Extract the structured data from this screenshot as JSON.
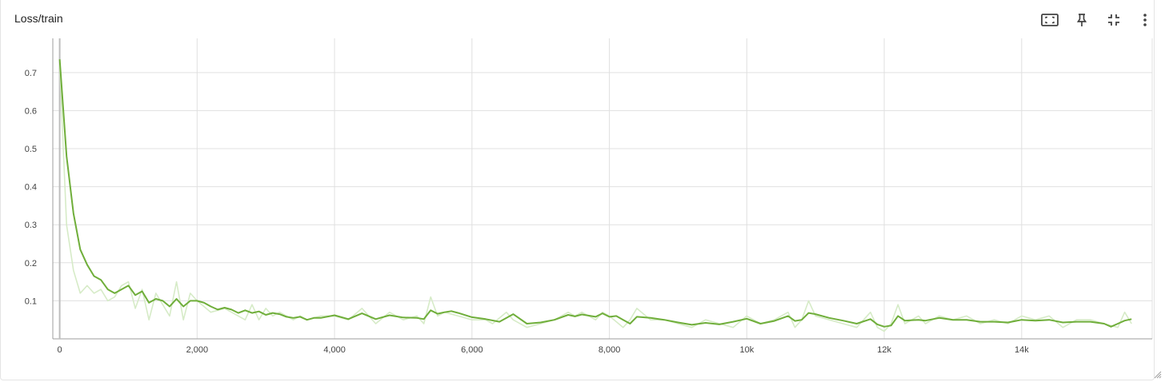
{
  "card": {
    "title": "Loss/train",
    "toolbar": [
      {
        "name": "fit-domain-button",
        "icon": "fit-domain-icon"
      },
      {
        "name": "pin-button",
        "icon": "pin-icon"
      },
      {
        "name": "collapse-button",
        "icon": "collapse-icon"
      },
      {
        "name": "more-menu-button",
        "icon": "more-vert-icon"
      }
    ]
  },
  "chart_data": {
    "type": "line",
    "title": "Loss/train",
    "xlabel": "",
    "ylabel": "",
    "xlim": [
      -100,
      15900
    ],
    "ylim": [
      0,
      0.79
    ],
    "x_ticks": [
      {
        "value": 0,
        "label": "0"
      },
      {
        "value": 2000,
        "label": "2,000"
      },
      {
        "value": 4000,
        "label": "4,000"
      },
      {
        "value": 6000,
        "label": "6,000"
      },
      {
        "value": 8000,
        "label": "8,000"
      },
      {
        "value": 10000,
        "label": "10k"
      },
      {
        "value": 12000,
        "label": "12k"
      },
      {
        "value": 14000,
        "label": "14k"
      }
    ],
    "y_ticks": [
      {
        "value": 0.1,
        "label": "0.1"
      },
      {
        "value": 0.2,
        "label": "0.2"
      },
      {
        "value": 0.3,
        "label": "0.3"
      },
      {
        "value": 0.4,
        "label": "0.4"
      },
      {
        "value": 0.5,
        "label": "0.5"
      },
      {
        "value": 0.6,
        "label": "0.6"
      },
      {
        "value": 0.7,
        "label": "0.7"
      }
    ],
    "grid": true,
    "legend": "none",
    "colors": {
      "smoothed": "#6fae3a",
      "raw": "#d6ebc7",
      "grid": "#e0e0e0",
      "axis": "#9e9e9e"
    },
    "series": [
      {
        "role": "raw",
        "x": [
          0,
          100,
          200,
          300,
          400,
          500,
          600,
          700,
          800,
          900,
          1000,
          1100,
          1200,
          1300,
          1400,
          1500,
          1600,
          1700,
          1800,
          1900,
          2000,
          2200,
          2400,
          2600,
          2700,
          2800,
          2900,
          3000,
          3100,
          3200,
          3400,
          3500,
          3600,
          3800,
          4000,
          4200,
          4400,
          4600,
          4800,
          5000,
          5200,
          5300,
          5400,
          5500,
          5600,
          5800,
          6000,
          6200,
          6300,
          6500,
          6600,
          6800,
          7000,
          7200,
          7400,
          7500,
          7600,
          7800,
          7900,
          8000,
          8200,
          8300,
          8400,
          8600,
          8800,
          9000,
          9200,
          9400,
          9600,
          9800,
          10000,
          10200,
          10400,
          10600,
          10700,
          10800,
          10900,
          11000,
          11200,
          11400,
          11600,
          11800,
          11900,
          12000,
          12100,
          12200,
          12300,
          12500,
          12600,
          12800,
          13000,
          13200,
          13400,
          13600,
          13800,
          14000,
          14200,
          14400,
          14600,
          14800,
          15000,
          15200,
          15400,
          15500,
          15600
        ],
        "y": [
          0.72,
          0.3,
          0.18,
          0.12,
          0.14,
          0.12,
          0.13,
          0.1,
          0.11,
          0.14,
          0.15,
          0.08,
          0.13,
          0.05,
          0.12,
          0.09,
          0.06,
          0.15,
          0.05,
          0.12,
          0.1,
          0.07,
          0.08,
          0.06,
          0.05,
          0.09,
          0.05,
          0.08,
          0.06,
          0.07,
          0.05,
          0.06,
          0.05,
          0.06,
          0.06,
          0.05,
          0.08,
          0.04,
          0.07,
          0.05,
          0.06,
          0.04,
          0.11,
          0.06,
          0.07,
          0.06,
          0.05,
          0.05,
          0.04,
          0.07,
          0.05,
          0.03,
          0.04,
          0.05,
          0.07,
          0.06,
          0.07,
          0.05,
          0.07,
          0.06,
          0.03,
          0.05,
          0.08,
          0.05,
          0.05,
          0.04,
          0.03,
          0.05,
          0.04,
          0.03,
          0.06,
          0.04,
          0.05,
          0.07,
          0.03,
          0.05,
          0.1,
          0.06,
          0.05,
          0.04,
          0.03,
          0.07,
          0.03,
          0.02,
          0.04,
          0.09,
          0.04,
          0.06,
          0.04,
          0.06,
          0.05,
          0.06,
          0.04,
          0.05,
          0.04,
          0.06,
          0.05,
          0.06,
          0.03,
          0.05,
          0.05,
          0.04,
          0.03,
          0.07,
          0.04
        ]
      },
      {
        "role": "smoothed",
        "x": [
          0,
          100,
          200,
          300,
          400,
          500,
          600,
          700,
          800,
          900,
          1000,
          1100,
          1200,
          1300,
          1400,
          1500,
          1600,
          1700,
          1800,
          1900,
          2000,
          2100,
          2200,
          2300,
          2400,
          2500,
          2600,
          2700,
          2800,
          2900,
          3000,
          3100,
          3200,
          3300,
          3400,
          3500,
          3600,
          3700,
          3800,
          4000,
          4200,
          4400,
          4600,
          4800,
          5000,
          5200,
          5300,
          5400,
          5500,
          5600,
          5700,
          5800,
          6000,
          6200,
          6400,
          6600,
          6800,
          7000,
          7200,
          7400,
          7500,
          7600,
          7800,
          7900,
          8000,
          8100,
          8200,
          8300,
          8400,
          8600,
          8800,
          9000,
          9200,
          9400,
          9600,
          9800,
          10000,
          10200,
          10400,
          10600,
          10700,
          10800,
          10900,
          11000,
          11200,
          11400,
          11600,
          11800,
          11900,
          12000,
          12100,
          12200,
          12300,
          12500,
          12600,
          12800,
          13000,
          13200,
          13400,
          13600,
          13800,
          14000,
          14200,
          14400,
          14600,
          14800,
          15000,
          15200,
          15300,
          15400,
          15500,
          15600
        ],
        "y": [
          0.735,
          0.48,
          0.33,
          0.235,
          0.195,
          0.165,
          0.155,
          0.13,
          0.12,
          0.13,
          0.14,
          0.115,
          0.125,
          0.095,
          0.105,
          0.1,
          0.085,
          0.105,
          0.085,
          0.1,
          0.1,
          0.095,
          0.085,
          0.077,
          0.082,
          0.077,
          0.068,
          0.075,
          0.068,
          0.072,
          0.063,
          0.068,
          0.065,
          0.058,
          0.055,
          0.058,
          0.05,
          0.055,
          0.055,
          0.062,
          0.052,
          0.067,
          0.052,
          0.062,
          0.056,
          0.055,
          0.052,
          0.075,
          0.066,
          0.07,
          0.073,
          0.068,
          0.057,
          0.052,
          0.045,
          0.065,
          0.04,
          0.043,
          0.05,
          0.063,
          0.059,
          0.064,
          0.058,
          0.067,
          0.058,
          0.06,
          0.05,
          0.04,
          0.058,
          0.055,
          0.05,
          0.043,
          0.037,
          0.042,
          0.038,
          0.045,
          0.053,
          0.04,
          0.047,
          0.06,
          0.047,
          0.05,
          0.068,
          0.065,
          0.055,
          0.048,
          0.04,
          0.052,
          0.038,
          0.032,
          0.035,
          0.06,
          0.048,
          0.05,
          0.048,
          0.055,
          0.05,
          0.05,
          0.045,
          0.045,
          0.043,
          0.05,
          0.048,
          0.05,
          0.043,
          0.045,
          0.045,
          0.04,
          0.032,
          0.04,
          0.048,
          0.052
        ]
      }
    ]
  }
}
